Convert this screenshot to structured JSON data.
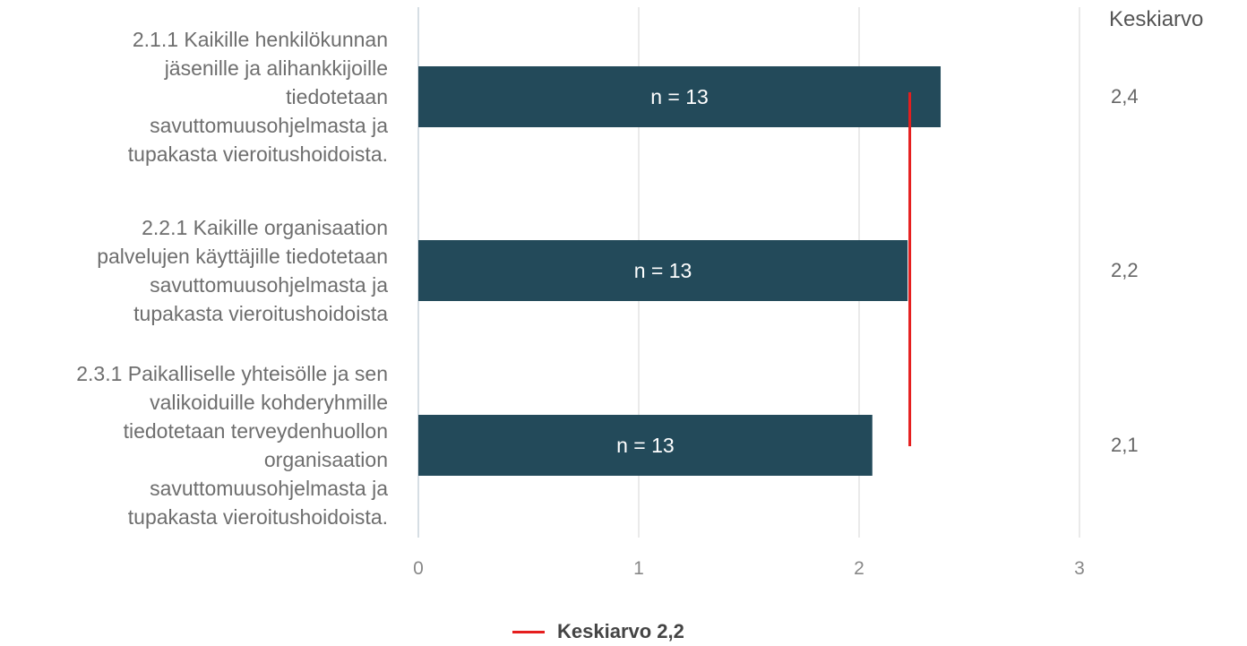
{
  "chart_data": {
    "type": "bar",
    "orientation": "horizontal",
    "categories": [
      "2.1.1 Kaikille henkilökunnan jäsenille ja alihankkijoille tiedotetaan savuttomuusohjelmasta ja tupakasta vieroitushoidoista.",
      "2.2.1 Kaikille organisaation palvelujen käyttäjille tiedotetaan savuttomuusohjelmasta ja tupakasta vieroitushoidoista",
      "2.3.1 Paikalliselle yhteisölle ja sen valikoiduille kohderyhmille tiedotetaan terveydenhuollon organisaation savuttomuusohjelmasta ja tupakasta vieroitushoidoista."
    ],
    "category_lines": [
      [
        "2.1.1 Kaikille henkilökunnan",
        "jäsenille ja alihankkijoille",
        "tiedotetaan",
        "savuttomuusohjelmasta ja",
        "tupakasta vieroitushoidoista."
      ],
      [
        "2.2.1 Kaikille organisaation",
        "palvelujen käyttäjille tiedotetaan",
        "savuttomuusohjelmasta ja",
        "tupakasta vieroitushoidoista"
      ],
      [
        "2.3.1 Paikalliselle yhteisölle ja sen",
        "valikoiduille kohderyhmille",
        "tiedotetaan terveydenhuollon",
        "organisaation",
        "savuttomuusohjelmasta ja",
        "tupakasta vieroitushoidoista."
      ]
    ],
    "values": [
      2.37,
      2.22,
      2.06
    ],
    "bar_labels": [
      "n = 13",
      "n = 13",
      "n = 13"
    ],
    "mean_column_header": "Keskiarvo",
    "mean_labels": [
      "2,4",
      "2,2",
      "2,1"
    ],
    "reference_line": {
      "value": 2.23,
      "label": "Keskiarvo 2,2",
      "color": "#e51e1e"
    },
    "xlim": [
      0,
      3
    ],
    "xticks": [
      "0",
      "1",
      "2",
      "3"
    ],
    "bar_color": "#234a5a",
    "grid": true,
    "legend_position": "bottom"
  }
}
